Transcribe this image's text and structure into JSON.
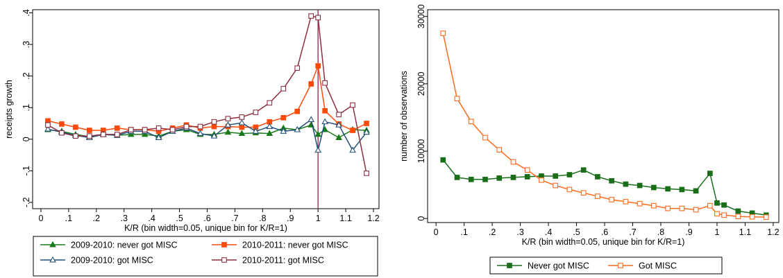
{
  "chart_data": [
    {
      "type": "line",
      "xlabel": "K/R (bin width=0.05, unique bin for K/R=1)",
      "ylabel": "receipts growth",
      "xlim": [
        -0.03,
        1.22
      ],
      "ylim": [
        -0.22,
        0.41
      ],
      "x_ticks": [
        0,
        0.1,
        0.2,
        0.3,
        0.4,
        0.5,
        0.6,
        0.7,
        0.8,
        0.9,
        1,
        1.1,
        1.2
      ],
      "x_tick_labels": [
        "0",
        ".1",
        ".2",
        ".3",
        ".4",
        ".5",
        ".6",
        ".7",
        ".8",
        ".9",
        "1",
        "1.1",
        "1.2"
      ],
      "y_ticks": [
        -0.2,
        -0.1,
        0,
        0.1,
        0.2,
        0.3,
        0.4
      ],
      "y_tick_labels": [
        "-.2",
        "-.1",
        "0",
        ".1",
        ".2",
        ".3",
        ".4"
      ],
      "grid": false,
      "vline": {
        "x": 1,
        "color": "#a0305a"
      },
      "legend_position": "bottom",
      "series": [
        {
          "name": "2009-2010: never got MISC",
          "color": "#1a7a1a",
          "marker": "filled-triangle",
          "x": [
            0.025,
            0.075,
            0.125,
            0.175,
            0.225,
            0.275,
            0.325,
            0.375,
            0.425,
            0.475,
            0.525,
            0.575,
            0.625,
            0.675,
            0.725,
            0.775,
            0.825,
            0.875,
            0.925,
            0.975,
            1.0,
            1.025,
            1.075,
            1.125,
            1.175
          ],
          "y": [
            0.03,
            0.025,
            0.015,
            0.008,
            0.015,
            0.012,
            0.015,
            0.015,
            0.01,
            0.025,
            0.03,
            0.015,
            0.015,
            0.022,
            0.018,
            0.02,
            0.018,
            0.035,
            0.03,
            0.045,
            0.015,
            0.03,
            0.005,
            0.03,
            0.028
          ]
        },
        {
          "name": "2010-2011: never got MISC",
          "color": "#ff4a0a",
          "marker": "filled-square",
          "x": [
            0.025,
            0.075,
            0.125,
            0.175,
            0.225,
            0.275,
            0.325,
            0.375,
            0.425,
            0.475,
            0.525,
            0.575,
            0.625,
            0.675,
            0.725,
            0.775,
            0.825,
            0.875,
            0.925,
            0.975,
            1.0,
            1.025,
            1.075,
            1.125,
            1.175
          ],
          "y": [
            0.058,
            0.048,
            0.038,
            0.028,
            0.028,
            0.035,
            0.03,
            0.03,
            0.025,
            0.035,
            0.045,
            0.035,
            0.04,
            0.04,
            0.038,
            0.038,
            0.055,
            0.068,
            0.088,
            0.175,
            0.232,
            0.09,
            0.048,
            0.028,
            0.05
          ]
        },
        {
          "name": "2009-2010: got MISC",
          "color": "#1f4e79",
          "marker": "hollow-triangle",
          "x": [
            0.025,
            0.075,
            0.125,
            0.175,
            0.225,
            0.275,
            0.325,
            0.375,
            0.425,
            0.475,
            0.525,
            0.575,
            0.625,
            0.675,
            0.725,
            0.775,
            0.825,
            0.875,
            0.925,
            0.975,
            1.0,
            1.025,
            1.075,
            1.125,
            1.175
          ],
          "y": [
            0.032,
            0.022,
            0.012,
            0.005,
            0.015,
            0.012,
            0.025,
            0.025,
            0.005,
            0.025,
            0.035,
            0.018,
            0.01,
            0.045,
            0.052,
            0.025,
            0.04,
            0.025,
            0.03,
            0.062,
            -0.035,
            0.055,
            0.045,
            -0.035,
            0.022
          ]
        },
        {
          "name": "2010-2011: got MISC",
          "color": "#8b2e3f",
          "marker": "hollow-square",
          "x": [
            0.025,
            0.075,
            0.125,
            0.175,
            0.225,
            0.275,
            0.325,
            0.375,
            0.425,
            0.475,
            0.525,
            0.575,
            0.625,
            0.675,
            0.725,
            0.775,
            0.825,
            0.875,
            0.925,
            0.975,
            1.0,
            1.025,
            1.075,
            1.125,
            1.175
          ],
          "y": [
            0.045,
            0.02,
            0.01,
            0.01,
            0.015,
            0.015,
            0.03,
            0.03,
            0.035,
            0.03,
            0.04,
            0.04,
            0.055,
            0.065,
            0.07,
            0.085,
            0.115,
            0.16,
            0.225,
            0.39,
            0.385,
            0.178,
            0.078,
            0.108,
            -0.108
          ]
        }
      ]
    },
    {
      "type": "line",
      "xlabel": "K/R (bin width=0.05, unique bin for K/R=1)",
      "ylabel": "number of observations",
      "xlim": [
        -0.03,
        1.22
      ],
      "ylim": [
        -600,
        31000
      ],
      "x_ticks": [
        0,
        0.1,
        0.2,
        0.3,
        0.4,
        0.5,
        0.6,
        0.7,
        0.8,
        0.9,
        1,
        1.1,
        1.2
      ],
      "x_tick_labels": [
        "0",
        ".1",
        ".2",
        ".3",
        ".4",
        ".5",
        ".6",
        ".7",
        ".8",
        ".9",
        "1",
        "1.1",
        "1.2"
      ],
      "y_ticks": [
        0,
        10000,
        20000,
        30000
      ],
      "y_tick_labels": [
        "0",
        "10000",
        "20000",
        "30000"
      ],
      "grid": false,
      "legend_position": "bottom",
      "series": [
        {
          "name": "Never got MISC",
          "color": "#1a6e1a",
          "marker": "filled-square",
          "x": [
            0.025,
            0.075,
            0.125,
            0.175,
            0.225,
            0.275,
            0.325,
            0.375,
            0.425,
            0.475,
            0.525,
            0.575,
            0.625,
            0.675,
            0.725,
            0.775,
            0.825,
            0.875,
            0.925,
            0.975,
            1.0,
            1.025,
            1.075,
            1.125,
            1.175
          ],
          "y": [
            8700,
            6100,
            5800,
            5800,
            6000,
            6100,
            6200,
            6300,
            6300,
            6500,
            7200,
            6200,
            5600,
            5100,
            4900,
            4600,
            4400,
            4300,
            4100,
            6700,
            2300,
            2000,
            1100,
            800,
            500
          ]
        },
        {
          "name": "Got MISC",
          "color": "#ff6a1a",
          "marker": "hollow-square",
          "x": [
            0.025,
            0.075,
            0.125,
            0.175,
            0.225,
            0.275,
            0.325,
            0.375,
            0.425,
            0.475,
            0.525,
            0.575,
            0.625,
            0.675,
            0.725,
            0.775,
            0.825,
            0.875,
            0.925,
            0.975,
            1.0,
            1.025,
            1.075,
            1.125,
            1.175
          ],
          "y": [
            27500,
            17800,
            14400,
            12000,
            10200,
            8400,
            7200,
            5700,
            4900,
            4300,
            3800,
            3300,
            2800,
            2500,
            2200,
            1900,
            1500,
            1500,
            1300,
            1900,
            700,
            500,
            300,
            250,
            200
          ]
        }
      ]
    }
  ]
}
